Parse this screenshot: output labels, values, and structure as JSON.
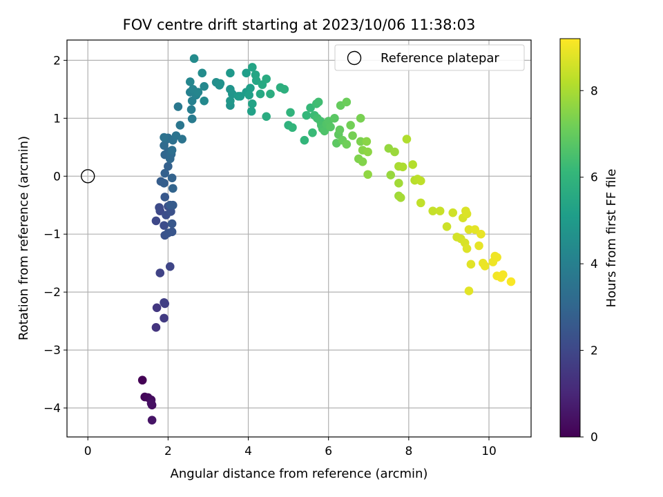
{
  "chart_data": {
    "type": "scatter",
    "title": "FOV centre drift starting at 2023/10/06 11:38:03",
    "xlabel": "Angular distance from reference (arcmin)",
    "ylabel": "Rotation from reference (arcmin)",
    "xlim": [
      -0.52,
      11.05
    ],
    "ylim": [
      -4.5,
      2.35
    ],
    "xticks": [
      0,
      2,
      4,
      6,
      8,
      10
    ],
    "yticks": [
      -4,
      -3,
      -2,
      -1,
      0,
      1,
      2
    ],
    "xtick_labels": [
      "0",
      "2",
      "4",
      "6",
      "8",
      "10"
    ],
    "ytick_labels": [
      "−4",
      "−3",
      "−2",
      "−1",
      "0",
      "1",
      "2"
    ],
    "grid": true,
    "legend": {
      "placement": "top-right",
      "entries": [
        {
          "label": "Reference platepar",
          "marker": "open-circle"
        }
      ]
    },
    "reference_point": {
      "x": 0,
      "y": 0
    },
    "colorbar": {
      "label": "Hours from first FF file",
      "colormap": "viridis",
      "range": [
        0,
        9.2
      ],
      "ticks": [
        0,
        2,
        4,
        6,
        8
      ],
      "tick_labels": [
        "0",
        "2",
        "4",
        "6",
        "8"
      ]
    },
    "points": [
      [
        1.36,
        -3.52,
        0.02
      ],
      [
        1.42,
        -3.81,
        0.12
      ],
      [
        1.5,
        -3.82,
        0.2
      ],
      [
        1.58,
        -3.86,
        0.28
      ],
      [
        1.6,
        -3.95,
        0.35
      ],
      [
        1.58,
        -3.92,
        0.4
      ],
      [
        1.6,
        -4.21,
        0.5
      ],
      [
        1.7,
        -2.61,
        1.4
      ],
      [
        1.72,
        -2.27,
        1.5
      ],
      [
        1.9,
        -2.45,
        1.6
      ],
      [
        1.92,
        -2.2,
        1.7
      ],
      [
        1.9,
        -2.18,
        1.75
      ],
      [
        1.8,
        -1.67,
        1.85
      ],
      [
        2.05,
        -1.56,
        1.95
      ],
      [
        1.7,
        -0.77,
        2.0
      ],
      [
        1.8,
        -0.6,
        2.05
      ],
      [
        1.78,
        -0.54,
        2.1
      ],
      [
        1.9,
        -0.85,
        2.15
      ],
      [
        1.95,
        -0.67,
        2.2
      ],
      [
        2.0,
        -0.52,
        2.25
      ],
      [
        2.07,
        -0.61,
        2.3
      ],
      [
        1.92,
        -1.02,
        2.35
      ],
      [
        2.0,
        -0.98,
        2.4
      ],
      [
        2.1,
        -0.96,
        2.45
      ],
      [
        2.1,
        -0.82,
        2.5
      ],
      [
        1.92,
        -0.36,
        2.55
      ],
      [
        2.05,
        -0.5,
        2.6
      ],
      [
        2.12,
        -0.5,
        2.65
      ],
      [
        1.82,
        -0.09,
        2.7
      ],
      [
        1.9,
        -0.12,
        2.75
      ],
      [
        1.92,
        0.05,
        2.8
      ],
      [
        2.0,
        0.17,
        2.85
      ],
      [
        2.1,
        -0.03,
        2.9
      ],
      [
        2.12,
        -0.21,
        2.95
      ],
      [
        1.92,
        0.37,
        3.0
      ],
      [
        2.0,
        0.42,
        3.05
      ],
      [
        2.05,
        0.3,
        3.1
      ],
      [
        2.08,
        0.38,
        3.15
      ],
      [
        1.9,
        0.53,
        3.2
      ],
      [
        1.95,
        0.63,
        3.25
      ],
      [
        2.0,
        0.66,
        3.3
      ],
      [
        2.1,
        0.45,
        3.35
      ],
      [
        2.12,
        0.62,
        3.4
      ],
      [
        1.9,
        0.67,
        3.45
      ],
      [
        2.2,
        0.7,
        3.5
      ],
      [
        2.35,
        0.64,
        3.55
      ],
      [
        2.3,
        0.88,
        3.6
      ],
      [
        2.25,
        1.2,
        3.7
      ],
      [
        2.6,
        0.99,
        3.8
      ],
      [
        2.58,
        1.15,
        3.9
      ],
      [
        2.6,
        1.3,
        4.0
      ],
      [
        2.55,
        1.45,
        4.05
      ],
      [
        2.7,
        1.4,
        4.1
      ],
      [
        2.62,
        1.5,
        4.15
      ],
      [
        2.75,
        1.45,
        4.2
      ],
      [
        2.55,
        1.63,
        4.25
      ],
      [
        2.9,
        1.55,
        4.3
      ],
      [
        2.9,
        1.3,
        4.35
      ],
      [
        2.65,
        2.03,
        4.4
      ],
      [
        2.85,
        1.78,
        4.45
      ],
      [
        3.2,
        1.62,
        4.55
      ],
      [
        3.28,
        1.57,
        4.6
      ],
      [
        3.3,
        1.6,
        4.65
      ],
      [
        3.55,
        1.22,
        4.7
      ],
      [
        3.55,
        1.5,
        4.75
      ],
      [
        3.6,
        1.42,
        4.8
      ],
      [
        3.55,
        1.3,
        4.85
      ],
      [
        3.55,
        1.78,
        4.9
      ],
      [
        3.75,
        1.38,
        4.95
      ],
      [
        3.8,
        1.38,
        5.0
      ],
      [
        3.95,
        1.45,
        5.05
      ],
      [
        3.95,
        1.78,
        5.1
      ],
      [
        4.05,
        1.52,
        5.15
      ],
      [
        4.02,
        1.4,
        5.2
      ],
      [
        4.08,
        1.12,
        5.25
      ],
      [
        4.1,
        1.25,
        5.3
      ],
      [
        4.1,
        1.88,
        5.35
      ],
      [
        4.18,
        1.75,
        5.4
      ],
      [
        4.2,
        1.65,
        5.45
      ],
      [
        4.3,
        1.42,
        5.5
      ],
      [
        4.35,
        1.58,
        5.55
      ],
      [
        4.45,
        1.68,
        5.6
      ],
      [
        4.45,
        1.03,
        5.65
      ],
      [
        4.55,
        1.42,
        5.7
      ],
      [
        4.8,
        1.53,
        5.75
      ],
      [
        4.9,
        1.5,
        5.8
      ],
      [
        5.0,
        0.88,
        5.9
      ],
      [
        5.05,
        1.1,
        5.95
      ],
      [
        5.1,
        0.84,
        6.0
      ],
      [
        5.4,
        0.62,
        6.05
      ],
      [
        5.45,
        1.05,
        6.1
      ],
      [
        5.55,
        1.18,
        6.15
      ],
      [
        5.6,
        0.75,
        6.2
      ],
      [
        5.65,
        1.05,
        6.25
      ],
      [
        5.7,
        1.25,
        6.3
      ],
      [
        5.75,
        1.28,
        6.35
      ],
      [
        5.72,
        1.0,
        6.4
      ],
      [
        5.8,
        0.95,
        6.45
      ],
      [
        5.82,
        0.88,
        6.5
      ],
      [
        5.85,
        0.82,
        6.55
      ],
      [
        5.9,
        0.78,
        6.6
      ],
      [
        5.95,
        0.9,
        6.65
      ],
      [
        6.0,
        0.95,
        6.7
      ],
      [
        6.05,
        0.85,
        6.75
      ],
      [
        6.15,
        1.0,
        6.8
      ],
      [
        6.2,
        0.57,
        6.85
      ],
      [
        6.25,
        0.72,
        6.9
      ],
      [
        6.28,
        0.8,
        6.95
      ],
      [
        6.3,
        1.22,
        7.0
      ],
      [
        6.35,
        0.62,
        7.05
      ],
      [
        6.45,
        1.28,
        7.1
      ],
      [
        6.45,
        0.55,
        7.15
      ],
      [
        6.55,
        0.88,
        7.2
      ],
      [
        6.6,
        0.7,
        7.25
      ],
      [
        6.8,
        1.0,
        7.3
      ],
      [
        6.8,
        0.6,
        7.35
      ],
      [
        6.75,
        0.3,
        7.4
      ],
      [
        6.85,
        0.25,
        7.45
      ],
      [
        6.85,
        0.45,
        7.5
      ],
      [
        6.95,
        0.6,
        7.55
      ],
      [
        6.98,
        0.42,
        7.6
      ],
      [
        6.98,
        0.03,
        7.65
      ],
      [
        7.5,
        0.48,
        7.7
      ],
      [
        7.55,
        0.02,
        7.75
      ],
      [
        7.65,
        0.42,
        7.8
      ],
      [
        7.75,
        -0.34,
        7.85
      ],
      [
        7.75,
        -0.12,
        7.9
      ],
      [
        7.8,
        -0.37,
        7.95
      ],
      [
        7.75,
        0.17,
        8.0
      ],
      [
        7.85,
        0.16,
        8.05
      ],
      [
        7.95,
        0.64,
        8.1
      ],
      [
        8.1,
        0.2,
        8.15
      ],
      [
        8.15,
        -0.07,
        8.2
      ],
      [
        8.22,
        -0.05,
        8.25
      ],
      [
        8.3,
        -0.08,
        8.3
      ],
      [
        8.3,
        -0.46,
        8.35
      ],
      [
        8.6,
        -0.6,
        8.4
      ],
      [
        8.78,
        -0.6,
        8.45
      ],
      [
        8.95,
        -0.87,
        8.5
      ],
      [
        9.1,
        -0.63,
        8.55
      ],
      [
        9.2,
        -1.05,
        8.6
      ],
      [
        9.3,
        -1.08,
        8.62
      ],
      [
        9.35,
        -0.72,
        8.65
      ],
      [
        9.4,
        -1.15,
        8.68
      ],
      [
        9.42,
        -0.6,
        8.7
      ],
      [
        9.45,
        -0.65,
        8.72
      ],
      [
        9.45,
        -1.25,
        8.75
      ],
      [
        9.5,
        -0.92,
        8.78
      ],
      [
        9.55,
        -1.52,
        8.8
      ],
      [
        9.5,
        -1.98,
        8.82
      ],
      [
        9.65,
        -0.92,
        8.85
      ],
      [
        9.75,
        -1.2,
        8.88
      ],
      [
        9.8,
        -1.0,
        8.9
      ],
      [
        9.85,
        -1.5,
        8.92
      ],
      [
        9.9,
        -1.55,
        8.95
      ],
      [
        10.1,
        -1.48,
        8.98
      ],
      [
        10.15,
        -1.38,
        9.0
      ],
      [
        10.2,
        -1.4,
        9.02
      ],
      [
        10.2,
        -1.72,
        9.05
      ],
      [
        10.3,
        -1.75,
        9.08
      ],
      [
        10.35,
        -1.7,
        9.1
      ],
      [
        10.55,
        -1.82,
        9.15
      ]
    ]
  }
}
